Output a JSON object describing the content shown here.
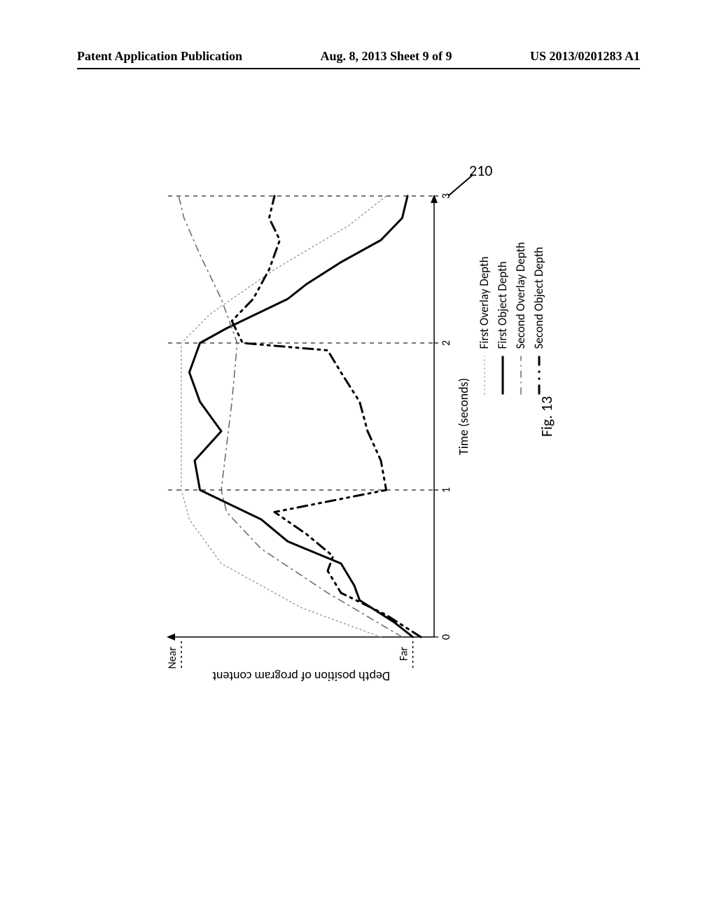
{
  "header": {
    "left": "Patent Application Publication",
    "center": "Aug. 8, 2013  Sheet 9 of 9",
    "right": "US 2013/0201283 A1"
  },
  "reference_numeral": "210",
  "figure_label": "Fig. 13",
  "chart": {
    "type": "line",
    "x_axis": {
      "label": "Time (seconds)",
      "ticks": [
        0,
        1,
        2,
        3
      ],
      "lim": [
        0,
        3
      ]
    },
    "y_axis": {
      "label": "Depth position of program content",
      "near_label": "Near",
      "far_label": "Far",
      "lim": [
        0,
        100
      ]
    },
    "vertical_markers": [
      1,
      2,
      3
    ],
    "series": [
      {
        "name": "First Overlay Depth",
        "style": "dotted",
        "color": "#888888",
        "width": 1.2,
        "points": [
          [
            0.0,
            20
          ],
          [
            0.2,
            50
          ],
          [
            0.5,
            80
          ],
          [
            0.8,
            92
          ],
          [
            1.0,
            95
          ],
          [
            1.2,
            95
          ],
          [
            1.6,
            95
          ],
          [
            2.0,
            95
          ],
          [
            2.2,
            84
          ],
          [
            2.5,
            60
          ],
          [
            2.8,
            32
          ],
          [
            3.0,
            18
          ]
        ]
      },
      {
        "name": "First Object Depth",
        "style": "solid",
        "color": "#000000",
        "width": 3,
        "points": [
          [
            0.0,
            8
          ],
          [
            0.1,
            15
          ],
          [
            0.25,
            28
          ],
          [
            0.35,
            30
          ],
          [
            0.5,
            35
          ],
          [
            0.65,
            55
          ],
          [
            0.8,
            65
          ],
          [
            1.0,
            88
          ],
          [
            1.2,
            90
          ],
          [
            1.4,
            80
          ],
          [
            1.6,
            88
          ],
          [
            1.8,
            92
          ],
          [
            2.0,
            88
          ],
          [
            2.1,
            78
          ],
          [
            2.3,
            55
          ],
          [
            2.4,
            48
          ],
          [
            2.55,
            35
          ],
          [
            2.7,
            20
          ],
          [
            2.85,
            12
          ],
          [
            3.0,
            10
          ]
        ]
      },
      {
        "name": "Second Overlay Depth",
        "style": "dashdot",
        "color": "#666666",
        "width": 1.5,
        "points": [
          [
            0.0,
            12
          ],
          [
            0.3,
            40
          ],
          [
            0.6,
            65
          ],
          [
            0.85,
            78
          ],
          [
            1.0,
            80
          ],
          [
            1.3,
            78
          ],
          [
            1.6,
            76
          ],
          [
            2.0,
            74
          ],
          [
            2.3,
            80
          ],
          [
            2.6,
            88
          ],
          [
            2.85,
            94
          ],
          [
            3.0,
            96
          ]
        ]
      },
      {
        "name": "Second Object Depth",
        "style": "dashdotdot",
        "color": "#000000",
        "width": 3,
        "points": [
          [
            0.0,
            5
          ],
          [
            0.15,
            18
          ],
          [
            0.3,
            35
          ],
          [
            0.45,
            40
          ],
          [
            0.55,
            38
          ],
          [
            0.7,
            48
          ],
          [
            0.85,
            60
          ],
          [
            1.0,
            18
          ],
          [
            1.2,
            20
          ],
          [
            1.4,
            25
          ],
          [
            1.6,
            28
          ],
          [
            1.8,
            35
          ],
          [
            1.95,
            40
          ],
          [
            2.0,
            72
          ],
          [
            2.15,
            76
          ],
          [
            2.3,
            68
          ],
          [
            2.5,
            62
          ],
          [
            2.7,
            58
          ],
          [
            2.85,
            62
          ],
          [
            3.0,
            60
          ]
        ]
      }
    ],
    "legend": {
      "items": [
        {
          "label": "First Overlay Depth",
          "style": "dotted",
          "color": "#888888",
          "width": 1.2
        },
        {
          "label": "First Object Depth",
          "style": "solid",
          "color": "#000000",
          "width": 3
        },
        {
          "label": "Second Overlay Depth",
          "style": "dashdot",
          "color": "#666666",
          "width": 1.5
        },
        {
          "label": "Second Object Depth",
          "style": "dashdotdot",
          "color": "#000000",
          "width": 3
        }
      ]
    },
    "colors": {
      "background": "#ffffff",
      "axis": "#000000",
      "marker": "#222222"
    },
    "fonts": {
      "axis_label_size": 18,
      "tick_size": 16,
      "legend_size": 17
    }
  }
}
